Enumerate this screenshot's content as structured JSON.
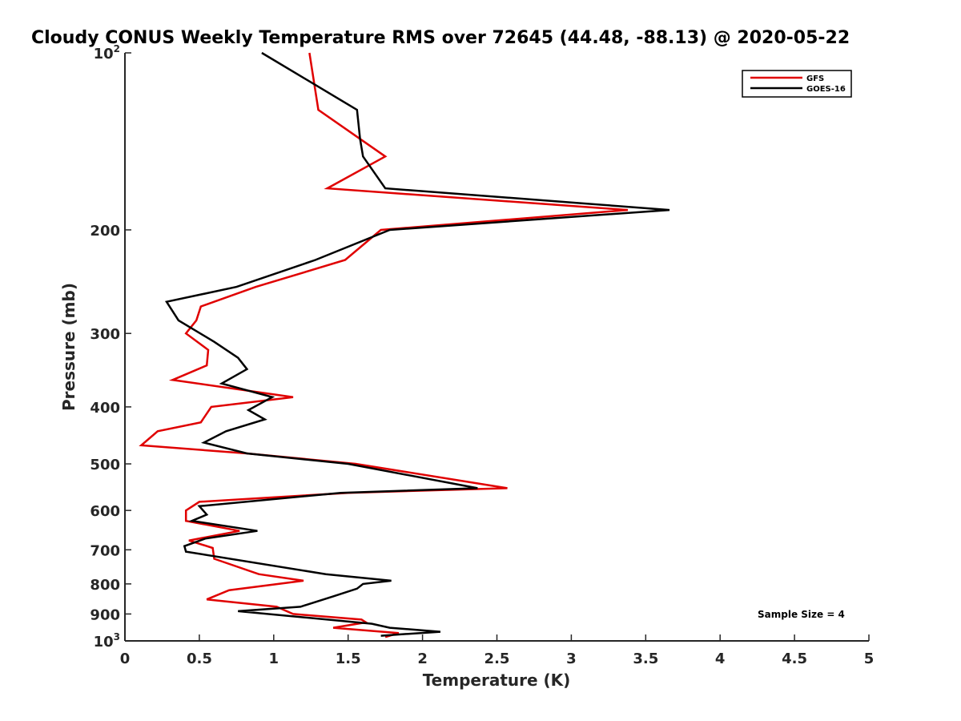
{
  "chart_data": {
    "type": "line",
    "title": "Cloudy CONUS Weekly Temperature RMS over 72645 (44.48, -88.13) @ 2020-05-22",
    "xlabel": "Temperature (K)",
    "ylabel": "Pressure (mb)",
    "xlim": [
      0,
      5
    ],
    "ylim": [
      1000,
      100
    ],
    "yscale": "log",
    "y_reversed": true,
    "grid": false,
    "legend_position": "top-right",
    "x_ticks": [
      0,
      0.5,
      1,
      1.5,
      2,
      2.5,
      3,
      3.5,
      4,
      4.5,
      5
    ],
    "x_tick_labels": [
      "0",
      "0.5",
      "1",
      "1.5",
      "2",
      "2.5",
      "3",
      "3.5",
      "4",
      "4.5",
      "5"
    ],
    "y_ticks": [
      {
        "value": 100,
        "base": "10",
        "exp": "2",
        "label": ""
      },
      {
        "value": 200,
        "base": "",
        "exp": "",
        "label": "200"
      },
      {
        "value": 300,
        "base": "",
        "exp": "",
        "label": "300"
      },
      {
        "value": 400,
        "base": "",
        "exp": "",
        "label": "400"
      },
      {
        "value": 500,
        "base": "",
        "exp": "",
        "label": "500"
      },
      {
        "value": 600,
        "base": "",
        "exp": "",
        "label": "600"
      },
      {
        "value": 700,
        "base": "",
        "exp": "",
        "label": "700"
      },
      {
        "value": 800,
        "base": "",
        "exp": "",
        "label": "800"
      },
      {
        "value": 900,
        "base": "",
        "exp": "",
        "label": "900"
      },
      {
        "value": 1000,
        "base": "10",
        "exp": "3",
        "label": ""
      }
    ],
    "series": [
      {
        "name": "GFS",
        "color": "#e00000",
        "points": [
          [
            1.24,
            100
          ],
          [
            1.3,
            125
          ],
          [
            1.75,
            150
          ],
          [
            1.36,
            170
          ],
          [
            3.38,
            185
          ],
          [
            1.72,
            200
          ],
          [
            1.48,
            225
          ],
          [
            0.88,
            250
          ],
          [
            0.51,
            270
          ],
          [
            0.48,
            285
          ],
          [
            0.41,
            300
          ],
          [
            0.56,
            320
          ],
          [
            0.55,
            340
          ],
          [
            0.32,
            360
          ],
          [
            1.13,
            385
          ],
          [
            0.58,
            400
          ],
          [
            0.51,
            425
          ],
          [
            0.22,
            440
          ],
          [
            0.11,
            465
          ],
          [
            0.82,
            480
          ],
          [
            1.55,
            500
          ],
          [
            2.57,
            550
          ],
          [
            1.5,
            560
          ],
          [
            0.5,
            580
          ],
          [
            0.41,
            600
          ],
          [
            0.41,
            625
          ],
          [
            0.77,
            650
          ],
          [
            0.43,
            675
          ],
          [
            0.59,
            695
          ],
          [
            0.6,
            725
          ],
          [
            0.9,
            770
          ],
          [
            1.2,
            790
          ],
          [
            0.7,
            820
          ],
          [
            0.55,
            850
          ],
          [
            1.02,
            875
          ],
          [
            1.13,
            900
          ],
          [
            1.59,
            920
          ],
          [
            1.62,
            930
          ],
          [
            1.4,
            950
          ],
          [
            1.84,
            970
          ],
          [
            1.75,
            985
          ]
        ]
      },
      {
        "name": "GOES-16",
        "color": "#000000",
        "points": [
          [
            0.92,
            100
          ],
          [
            1.56,
            125
          ],
          [
            1.58,
            140
          ],
          [
            1.6,
            150
          ],
          [
            1.75,
            170
          ],
          [
            3.66,
            185
          ],
          [
            1.78,
            200
          ],
          [
            1.28,
            225
          ],
          [
            0.75,
            250
          ],
          [
            0.28,
            265
          ],
          [
            0.36,
            285
          ],
          [
            0.6,
            310
          ],
          [
            0.76,
            330
          ],
          [
            0.82,
            345
          ],
          [
            0.65,
            365
          ],
          [
            0.99,
            385
          ],
          [
            0.83,
            405
          ],
          [
            0.94,
            420
          ],
          [
            0.68,
            440
          ],
          [
            0.53,
            460
          ],
          [
            0.82,
            480
          ],
          [
            1.5,
            500
          ],
          [
            2.37,
            550
          ],
          [
            1.45,
            560
          ],
          [
            0.5,
            590
          ],
          [
            0.55,
            610
          ],
          [
            0.45,
            625
          ],
          [
            0.89,
            650
          ],
          [
            0.54,
            670
          ],
          [
            0.4,
            690
          ],
          [
            0.41,
            705
          ],
          [
            1.35,
            770
          ],
          [
            1.79,
            790
          ],
          [
            1.6,
            800
          ],
          [
            1.56,
            815
          ],
          [
            1.4,
            840
          ],
          [
            1.18,
            875
          ],
          [
            0.76,
            890
          ],
          [
            1.66,
            935
          ],
          [
            1.78,
            950
          ],
          [
            2.12,
            965
          ],
          [
            1.85,
            975
          ],
          [
            1.72,
            980
          ]
        ]
      }
    ],
    "annotation": "Sample Size = 4"
  }
}
